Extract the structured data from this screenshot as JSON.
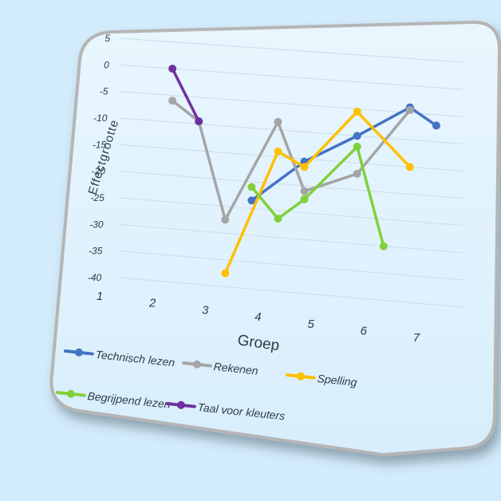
{
  "chart_data": {
    "type": "line",
    "title": "",
    "xlabel": "Groep",
    "ylabel": "Effectgrootte",
    "categories": [
      "1",
      "2",
      "3",
      "4",
      "5",
      "6",
      "7"
    ],
    "yticks": [
      "5",
      "0",
      "-5",
      "-10",
      "-15",
      "-20",
      "-25",
      "-30",
      "-35",
      "-40"
    ],
    "ylim": [
      -40,
      5
    ],
    "grid": true,
    "legend_position": "bottom",
    "series": [
      {
        "name": "Technisch lezen",
        "color": "#4472c4",
        "points": [
          [
            3.5,
            -23.5
          ],
          [
            4.5,
            -15.5
          ],
          [
            5.5,
            -10
          ],
          [
            6.5,
            -4
          ],
          [
            7,
            -7
          ]
        ]
      },
      {
        "name": "Rekenen",
        "color": "#a5a5a5",
        "points": [
          [
            2,
            -6
          ],
          [
            2.5,
            -9.5
          ],
          [
            3,
            -27.5
          ],
          [
            4,
            -8.5
          ],
          [
            4.5,
            -21
          ],
          [
            5.5,
            -17
          ],
          [
            6.5,
            -4.5
          ]
        ]
      },
      {
        "name": "Spelling",
        "color": "#ffc000",
        "points": [
          [
            3,
            -37.5
          ],
          [
            4,
            -14
          ],
          [
            4.5,
            -16.5
          ],
          [
            5.5,
            -5.5
          ],
          [
            6.5,
            -15
          ]
        ]
      },
      {
        "name": "Begrijpend lezen",
        "color": "#7fd13b",
        "points": [
          [
            3.5,
            -21
          ],
          [
            4,
            -26.5
          ],
          [
            4.5,
            -22.5
          ],
          [
            5.5,
            -12
          ],
          [
            6,
            -30
          ]
        ]
      },
      {
        "name": "Taal voor kleuters",
        "color": "#7030a0",
        "points": [
          [
            2,
            0
          ],
          [
            2.5,
            -9.5
          ]
        ]
      }
    ]
  }
}
